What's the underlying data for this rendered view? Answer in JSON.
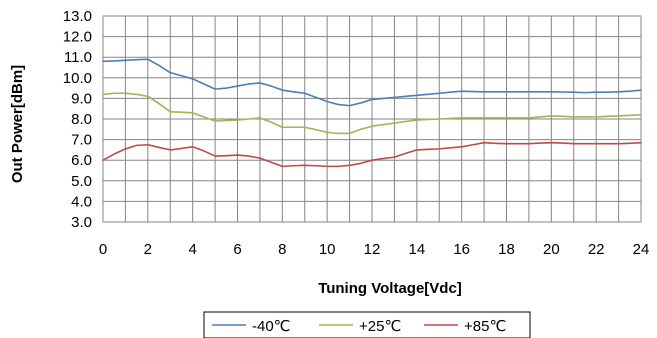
{
  "chart_data": {
    "type": "line",
    "title": "",
    "xlabel": "Tuning Voltage[Vdc]",
    "ylabel": "Out Power[dBm]",
    "xlim": [
      0,
      24
    ],
    "ylim": [
      3.0,
      13.0
    ],
    "x_ticks": [
      "0",
      "2",
      "4",
      "6",
      "8",
      "10",
      "12",
      "14",
      "16",
      "18",
      "20",
      "22",
      "24"
    ],
    "y_ticks": [
      "3.0",
      "4.0",
      "5.0",
      "6.0",
      "7.0",
      "8.0",
      "9.0",
      "10.0",
      "11.0",
      "12.0",
      "13.0"
    ],
    "grid": true,
    "legend_position": "bottom",
    "x": [
      0,
      0.5,
      1,
      1.5,
      2,
      2.5,
      3,
      3.5,
      4,
      4.5,
      5,
      5.5,
      6,
      6.5,
      7,
      7.5,
      8,
      8.5,
      9,
      9.5,
      10,
      10.5,
      11,
      11.5,
      12,
      12.5,
      13,
      13.5,
      14,
      14.5,
      15,
      15.5,
      16,
      16.5,
      17,
      17.5,
      18,
      18.5,
      19,
      19.5,
      20,
      20.5,
      21,
      21.5,
      22,
      22.5,
      23,
      23.5,
      24
    ],
    "series": [
      {
        "name": "-40℃",
        "color": "#4a7ebb",
        "values": [
          10.8,
          10.82,
          10.85,
          10.88,
          10.9,
          10.6,
          10.25,
          10.1,
          9.95,
          9.7,
          9.45,
          9.5,
          9.6,
          9.7,
          9.75,
          9.6,
          9.4,
          9.32,
          9.25,
          9.05,
          8.85,
          8.7,
          8.65,
          8.78,
          8.95,
          9.0,
          9.05,
          9.1,
          9.15,
          9.2,
          9.25,
          9.3,
          9.35,
          9.33,
          9.32,
          9.32,
          9.32,
          9.32,
          9.32,
          9.32,
          9.32,
          9.31,
          9.3,
          9.28,
          9.3,
          9.3,
          9.32,
          9.35,
          9.4
        ]
      },
      {
        "name": "+25℃",
        "color": "#98b954",
        "values": [
          9.2,
          9.25,
          9.25,
          9.2,
          9.1,
          8.75,
          8.35,
          8.33,
          8.3,
          8.1,
          7.9,
          7.93,
          7.95,
          8.0,
          8.05,
          7.85,
          7.6,
          7.6,
          7.6,
          7.48,
          7.35,
          7.3,
          7.3,
          7.5,
          7.65,
          7.73,
          7.8,
          7.88,
          7.95,
          7.98,
          8.0,
          8.03,
          8.05,
          8.05,
          8.05,
          8.05,
          8.05,
          8.05,
          8.05,
          8.1,
          8.15,
          8.13,
          8.1,
          8.1,
          8.1,
          8.13,
          8.15,
          8.18,
          8.2
        ]
      },
      {
        "name": "+85℃",
        "color": "#be4b48",
        "values": [
          6.0,
          6.3,
          6.55,
          6.72,
          6.75,
          6.62,
          6.5,
          6.57,
          6.65,
          6.45,
          6.2,
          6.22,
          6.25,
          6.2,
          6.1,
          5.9,
          5.7,
          5.73,
          5.75,
          5.73,
          5.7,
          5.7,
          5.75,
          5.85,
          6.0,
          6.08,
          6.15,
          6.33,
          6.5,
          6.53,
          6.55,
          6.6,
          6.65,
          6.75,
          6.85,
          6.82,
          6.8,
          6.8,
          6.8,
          6.83,
          6.85,
          6.83,
          6.8,
          6.8,
          6.8,
          6.8,
          6.8,
          6.82,
          6.85
        ]
      }
    ]
  }
}
